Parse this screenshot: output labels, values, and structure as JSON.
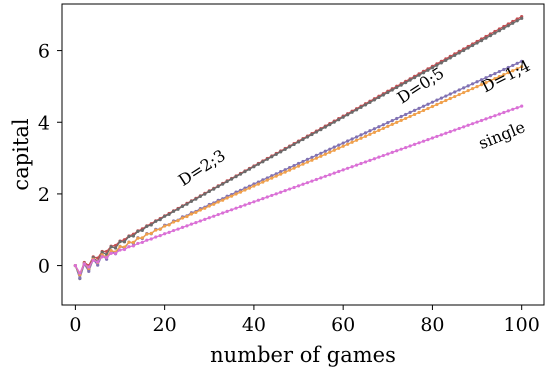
{
  "chart_data": {
    "type": "line",
    "title": "",
    "xlabel": "number of games",
    "ylabel": "capital",
    "xlim": [
      -3,
      105
    ],
    "ylim": [
      -1.1,
      7.3
    ],
    "xticks": [
      0,
      20,
      40,
      60,
      80,
      100
    ],
    "yticks": [
      0,
      2,
      4,
      6
    ],
    "grid": false,
    "legend": "none",
    "x": {
      "start": 0,
      "end": 100,
      "step": 1
    },
    "series": [
      {
        "color": "#c44e52",
        "start": 0,
        "end": 6.95,
        "osc": 0.38,
        "oscDecay": 0.2
      },
      {
        "color": "#6b6b6b",
        "start": 0,
        "end": 6.9,
        "osc": 0.5,
        "oscDecay": 0.15
      },
      {
        "color": "#8172b3",
        "start": 0,
        "end": 5.7,
        "osc": 0.45,
        "oscDecay": 0.1
      },
      {
        "color": "#f0a04b",
        "start": 0,
        "end": 5.55,
        "osc": 0.35,
        "oscDecay": 0.12
      },
      {
        "color": "#da70d6",
        "start": 0,
        "end": 4.45,
        "osc": 0.3,
        "oscDecay": 0.18
      }
    ],
    "annotations": [
      {
        "text": "D=2;3",
        "x": 29,
        "y": 2.6,
        "angle": -33
      },
      {
        "text": "D=0;5",
        "x": 78,
        "y": 4.9,
        "angle": -33
      },
      {
        "text": "D=1;4",
        "x": 97,
        "y": 5.15,
        "angle": -27
      },
      {
        "text": "single",
        "x": 96,
        "y": 3.5,
        "angle": -22
      }
    ]
  }
}
